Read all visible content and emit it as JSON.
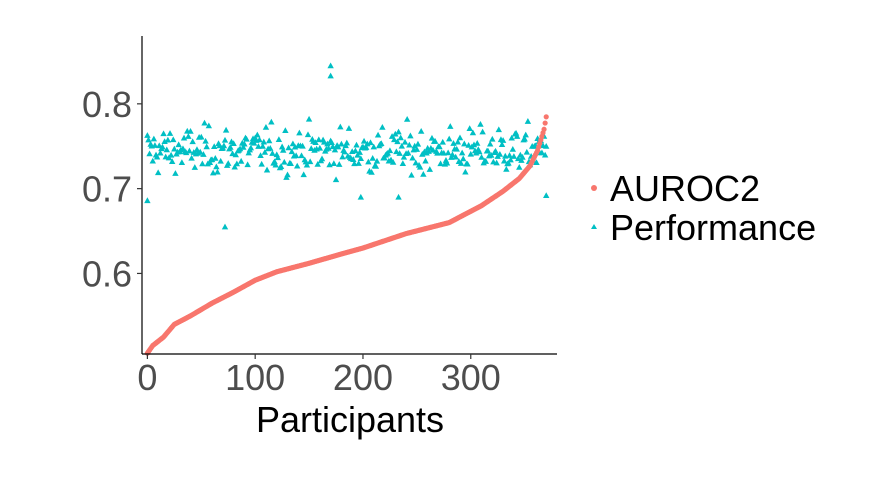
{
  "chart_data": {
    "type": "scatter",
    "title": "",
    "xlabel": "Participants",
    "ylabel": "",
    "xlim": [
      -5,
      380
    ],
    "ylim": [
      0.505,
      0.88
    ],
    "x_ticks": [
      0,
      100,
      200,
      300
    ],
    "x_tick_labels": [
      "0",
      "100",
      "200",
      "300"
    ],
    "y_ticks": [
      0.6,
      0.7,
      0.8
    ],
    "y_tick_labels": [
      "0.6",
      "0.7",
      "0.8"
    ],
    "grid": false,
    "legend_position": "right",
    "n_points": 371,
    "series": [
      {
        "name": "AUROC2",
        "marker": "circle",
        "color": "#F8766D",
        "description_points": "sorted ascending, one point per participant",
        "anchors_x": [
          0,
          5,
          15,
          25,
          40,
          60,
          80,
          100,
          120,
          150,
          180,
          200,
          240,
          280,
          310,
          330,
          345,
          355,
          362,
          368,
          371
        ],
        "anchors_y": [
          0.506,
          0.515,
          0.525,
          0.54,
          0.55,
          0.565,
          0.578,
          0.592,
          0.602,
          0.612,
          0.623,
          0.63,
          0.647,
          0.66,
          0.68,
          0.697,
          0.712,
          0.727,
          0.745,
          0.77,
          0.792
        ]
      },
      {
        "name": "Performance",
        "marker": "triangle",
        "color": "#00BFC4",
        "mean": 0.745,
        "spread": 0.05,
        "min": 0.655,
        "max": 0.845,
        "low_points": [
          {
            "x": 0,
            "y": 0.686
          },
          {
            "x": 72,
            "y": 0.655
          },
          {
            "x": 198,
            "y": 0.69
          },
          {
            "x": 233,
            "y": 0.69
          },
          {
            "x": 370,
            "y": 0.692
          }
        ],
        "high_points": [
          {
            "x": 170,
            "y": 0.845
          },
          {
            "x": 170,
            "y": 0.833
          }
        ]
      }
    ]
  }
}
